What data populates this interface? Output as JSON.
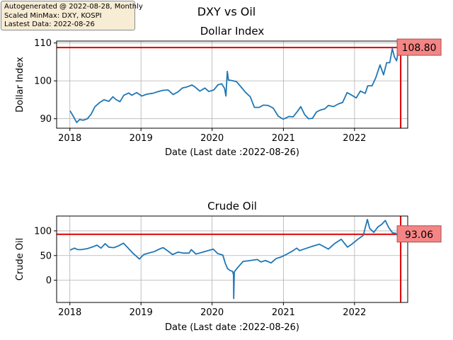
{
  "figure": {
    "title": "DXY vs Oil",
    "info_lines": [
      "Autogenerated @ 2022-08-28, Monthly",
      "Scaled MinMax: DXY, KOSPI",
      "Lastest Data: 2022-08-26"
    ]
  },
  "chart_data": [
    {
      "type": "line",
      "title": "Dollar Index",
      "xlabel": "Date (Last date :2022-08-26)",
      "ylabel": "Dollar Index",
      "x_ticks": [
        "2018",
        "2019",
        "2020",
        "2021",
        "2022"
      ],
      "y_ticks": [
        90,
        100,
        110
      ],
      "xlim": [
        "2017-10-25",
        "2022-10-01"
      ],
      "ylim": [
        87.5,
        110.5
      ],
      "grid": true,
      "line_color": "#1f77b4",
      "hline": 108.8,
      "vline": "2022-08-26",
      "ref_color": "#e00000",
      "last_value_label": "108.80",
      "series": [
        {
          "x": [
            "2018-01-02",
            "2018-01-20",
            "2018-02-05",
            "2018-02-20",
            "2018-03-10",
            "2018-04-01",
            "2018-04-20",
            "2018-05-10",
            "2018-06-01",
            "2018-06-25",
            "2018-07-20",
            "2018-08-10",
            "2018-08-25",
            "2018-09-15",
            "2018-10-05",
            "2018-10-30",
            "2018-11-15",
            "2018-12-10",
            "2019-01-05",
            "2019-02-01",
            "2019-03-01",
            "2019-04-01",
            "2019-04-25",
            "2019-05-20",
            "2019-06-15",
            "2019-07-10",
            "2019-08-01",
            "2019-08-25",
            "2019-09-20",
            "2019-10-05",
            "2019-10-30",
            "2019-11-25",
            "2019-12-15",
            "2020-01-10",
            "2020-02-01",
            "2020-02-20",
            "2020-03-05",
            "2020-03-12",
            "2020-03-19",
            "2020-03-25",
            "2020-04-10",
            "2020-05-05",
            "2020-05-30",
            "2020-06-20",
            "2020-07-15",
            "2020-08-05",
            "2020-08-30",
            "2020-09-20",
            "2020-10-15",
            "2020-11-10",
            "2020-12-05",
            "2020-12-30",
            "2021-01-10",
            "2021-01-30",
            "2021-02-20",
            "2021-03-15",
            "2021-03-31",
            "2021-04-20",
            "2021-05-10",
            "2021-05-30",
            "2021-06-20",
            "2021-07-10",
            "2021-08-01",
            "2021-08-20",
            "2021-09-15",
            "2021-10-10",
            "2021-11-01",
            "2021-11-24",
            "2021-12-15",
            "2022-01-10",
            "2022-01-31",
            "2022-02-25",
            "2022-03-10",
            "2022-04-01",
            "2022-04-20",
            "2022-05-12",
            "2022-05-30",
            "2022-06-15",
            "2022-07-01",
            "2022-07-14",
            "2022-07-25",
            "2022-08-05",
            "2022-08-15",
            "2022-08-26"
          ],
          "values": [
            92.1,
            90.5,
            89.0,
            89.8,
            89.6,
            90.0,
            91.2,
            93.2,
            94.2,
            95.0,
            94.6,
            95.8,
            95.1,
            94.5,
            96.2,
            96.8,
            96.2,
            96.9,
            96.0,
            96.5,
            96.7,
            97.2,
            97.5,
            97.6,
            96.4,
            97.1,
            98.1,
            98.4,
            98.9,
            98.4,
            97.3,
            98.1,
            97.2,
            97.6,
            99.0,
            99.2,
            98.0,
            96.0,
            102.5,
            100.2,
            100.1,
            99.8,
            98.3,
            97.0,
            95.8,
            93.0,
            93.0,
            93.6,
            93.5,
            92.8,
            90.7,
            89.9,
            90.1,
            90.6,
            90.5,
            92.0,
            93.2,
            91.1,
            90.0,
            90.1,
            91.8,
            92.3,
            92.6,
            93.5,
            93.2,
            93.9,
            94.3,
            96.9,
            96.3,
            95.5,
            97.3,
            96.7,
            98.7,
            98.7,
            100.8,
            104.2,
            101.6,
            104.8,
            104.8,
            108.5,
            106.3,
            105.3,
            108.1,
            108.8
          ]
        }
      ]
    },
    {
      "type": "line",
      "title": "Crude Oil",
      "xlabel": "Date (Last date :2022-08-26)",
      "ylabel": "Crude Oil",
      "x_ticks": [
        "2018",
        "2019",
        "2020",
        "2021",
        "2022"
      ],
      "y_ticks": [
        0,
        50,
        100
      ],
      "xlim": [
        "2017-10-25",
        "2022-10-01"
      ],
      "ylim": [
        -45,
        130
      ],
      "grid": true,
      "line_color": "#1f77b4",
      "hline": 93.06,
      "vline": "2022-08-26",
      "ref_color": "#e00000",
      "last_value_label": "93.06",
      "series": [
        {
          "x": [
            "2018-01-02",
            "2018-01-25",
            "2018-02-10",
            "2018-03-01",
            "2018-04-01",
            "2018-05-01",
            "2018-05-20",
            "2018-06-10",
            "2018-07-01",
            "2018-07-20",
            "2018-08-15",
            "2018-09-10",
            "2018-10-03",
            "2018-10-25",
            "2018-11-20",
            "2018-12-10",
            "2018-12-24",
            "2019-01-15",
            "2019-02-10",
            "2019-03-10",
            "2019-04-10",
            "2019-04-25",
            "2019-05-20",
            "2019-06-12",
            "2019-07-10",
            "2019-08-05",
            "2019-09-05",
            "2019-09-16",
            "2019-10-10",
            "2019-11-15",
            "2019-12-20",
            "2020-01-07",
            "2020-01-30",
            "2020-02-25",
            "2020-03-09",
            "2020-03-20",
            "2020-04-01",
            "2020-04-15",
            "2020-04-20",
            "2020-04-21",
            "2020-04-24",
            "2020-05-10",
            "2020-06-08",
            "2020-07-15",
            "2020-08-20",
            "2020-09-08",
            "2020-10-01",
            "2020-10-30",
            "2020-11-25",
            "2020-12-20",
            "2021-01-15",
            "2021-02-20",
            "2021-03-10",
            "2021-03-25",
            "2021-05-01",
            "2021-06-01",
            "2021-07-05",
            "2021-08-20",
            "2021-09-20",
            "2021-10-25",
            "2021-11-26",
            "2021-12-15",
            "2022-01-15",
            "2022-02-15",
            "2022-03-08",
            "2022-03-20",
            "2022-04-10",
            "2022-05-01",
            "2022-05-20",
            "2022-06-08",
            "2022-06-25",
            "2022-07-15",
            "2022-08-01",
            "2022-08-16",
            "2022-08-26"
          ],
          "values": [
            61,
            65,
            62,
            62,
            64,
            68,
            71,
            65,
            74,
            67,
            66,
            70,
            75,
            66,
            55,
            48,
            43,
            52,
            55,
            58,
            64,
            66,
            59,
            52,
            57,
            55,
            55,
            62,
            53,
            57,
            61,
            63,
            54,
            51,
            34,
            24,
            20,
            18,
            11,
            -37,
            17,
            25,
            38,
            40,
            42,
            37,
            40,
            35,
            44,
            47,
            52,
            60,
            65,
            60,
            65,
            69,
            73,
            63,
            74,
            83,
            67,
            72,
            82,
            91,
            123,
            105,
            97,
            108,
            113,
            121,
            107,
            96,
            95,
            87,
            93.06
          ]
        }
      ]
    }
  ]
}
